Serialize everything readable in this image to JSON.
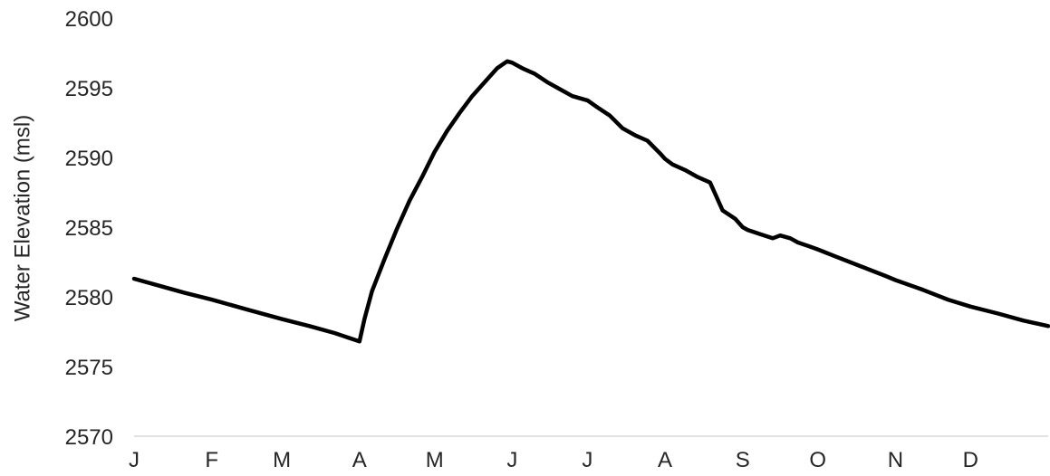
{
  "chart_data": {
    "type": "line",
    "title": "",
    "xlabel": "",
    "ylabel": "Water Elevation (msl)",
    "ylim": [
      2570,
      2600
    ],
    "yticks": [
      2570,
      2575,
      2580,
      2585,
      2590,
      2595,
      2600
    ],
    "xlim": [
      0,
      365
    ],
    "xtick_labels": [
      "J",
      "F",
      "M",
      "A",
      "M",
      "J",
      "J",
      "A",
      "S",
      "O",
      "N",
      "D"
    ],
    "xtick_positions": [
      0,
      31,
      59,
      90,
      120,
      151,
      181,
      212,
      243,
      273,
      304,
      334
    ],
    "grid": false,
    "legend": "none",
    "series": [
      {
        "color": "#000000",
        "x": [
          0,
          10,
          20,
          31,
          45,
          59,
          70,
          80,
          90,
          92,
          95,
          100,
          105,
          110,
          115,
          120,
          125,
          130,
          135,
          140,
          145,
          149,
          151,
          155,
          160,
          165,
          170,
          175,
          181,
          185,
          190,
          195,
          200,
          205,
          210,
          212,
          215,
          220,
          225,
          230,
          235,
          240,
          243,
          245,
          250,
          255,
          258,
          262,
          265,
          270,
          273,
          280,
          290,
          300,
          304,
          315,
          325,
          334,
          345,
          355,
          365
        ],
        "y": [
          2581.3,
          2580.8,
          2580.3,
          2579.8,
          2579.1,
          2578.4,
          2577.9,
          2577.4,
          2576.8,
          2578.4,
          2580.4,
          2582.7,
          2584.9,
          2586.9,
          2588.6,
          2590.4,
          2591.9,
          2593.2,
          2594.4,
          2595.4,
          2596.4,
          2596.9,
          2596.8,
          2596.4,
          2596.0,
          2595.4,
          2594.9,
          2594.4,
          2594.1,
          2593.6,
          2593.0,
          2592.1,
          2591.6,
          2591.2,
          2590.3,
          2589.9,
          2589.5,
          2589.1,
          2588.6,
          2588.2,
          2586.2,
          2585.6,
          2585.0,
          2584.8,
          2584.5,
          2584.2,
          2584.4,
          2584.2,
          2583.9,
          2583.6,
          2583.4,
          2582.9,
          2582.2,
          2581.5,
          2581.2,
          2580.5,
          2579.8,
          2579.3,
          2578.8,
          2578.3,
          2577.9
        ]
      }
    ]
  }
}
